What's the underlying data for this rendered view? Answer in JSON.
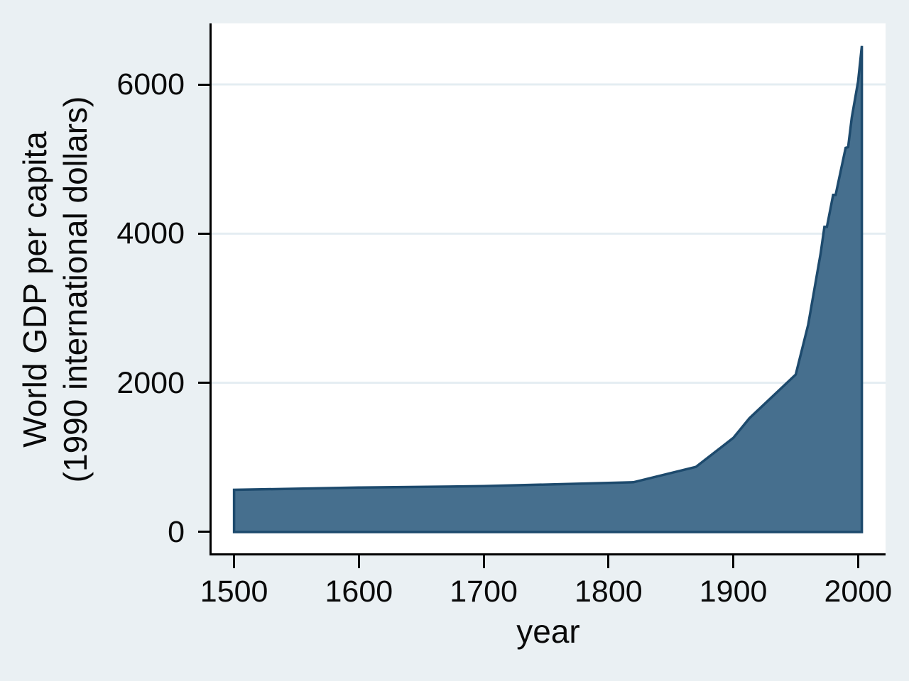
{
  "figure": {
    "background_color": "#eaf0f3",
    "plot_background_color": "#ffffff",
    "grid_color": "#e4edf2",
    "axis_color": "#000000",
    "text_color": "#0a0a0a",
    "area_fill_color": "#466f8e",
    "area_line_color": "#1d4a6d"
  },
  "chart_data": {
    "type": "area",
    "title": "",
    "xlabel": "year",
    "ylabel_line1": "World GDP per capita",
    "ylabel_line2": "(1990 international dollars)",
    "x_ticks": [
      1500,
      1600,
      1700,
      1800,
      1900,
      2000
    ],
    "y_ticks": [
      0,
      2000,
      4000,
      6000
    ],
    "y_grid": [
      2000,
      4000,
      6000
    ],
    "xlim": [
      1482,
      2022
    ],
    "ylim": [
      -295,
      6818
    ],
    "grid": "horizontal",
    "legend": "none",
    "series": [
      {
        "name": "World GDP per capita (1990 international dollars)",
        "baseline": 0,
        "points": [
          [
            1500,
            566
          ],
          [
            1600,
            596
          ],
          [
            1700,
            615
          ],
          [
            1820,
            667
          ],
          [
            1870,
            873
          ],
          [
            1900,
            1262
          ],
          [
            1913,
            1526
          ],
          [
            1950,
            2111
          ],
          [
            1960,
            2777
          ],
          [
            1970,
            3736
          ],
          [
            1973,
            4091
          ],
          [
            1975,
            4091
          ],
          [
            1980,
            4520
          ],
          [
            1982,
            4520
          ],
          [
            1990,
            5150
          ],
          [
            1992,
            5160
          ],
          [
            1995,
            5560
          ],
          [
            2000,
            6038
          ],
          [
            2003,
            6516
          ]
        ]
      }
    ]
  }
}
